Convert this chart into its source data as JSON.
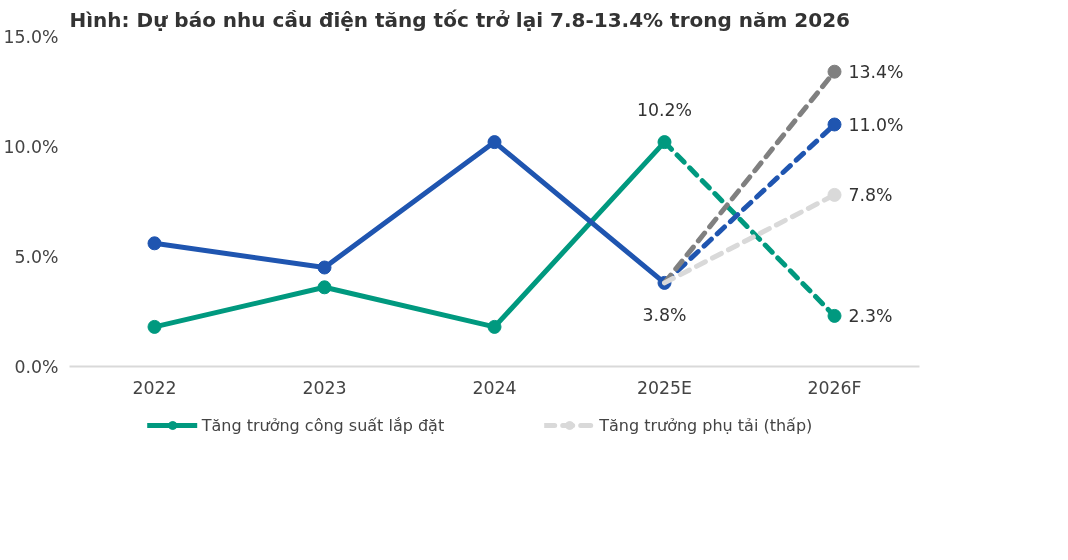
{
  "chart_data": {
    "type": "line",
    "title": "Hình: Dự báo nhu cầu điện tăng tốc trở lại 7.8-13.4% trong năm 2026",
    "categories": [
      "2022",
      "2023",
      "2024",
      "2025E",
      "2026F"
    ],
    "ylim": [
      0,
      15
    ],
    "yticks": [
      {
        "value": 0,
        "label": "0.0%"
      },
      {
        "value": 5,
        "label": "5.0%"
      },
      {
        "value": 10,
        "label": "10.0%"
      },
      {
        "value": 15,
        "label": "15.0%"
      }
    ],
    "grid": false,
    "legend": "bottom",
    "marker": "circle",
    "series": [
      {
        "name": "Tăng trưởng công suất lắp đặt",
        "color": "#00997f",
        "line_style": "solid",
        "values": [
          1.8,
          3.6,
          1.8,
          10.2,
          null
        ],
        "value_labels": [
          null,
          null,
          null,
          "10.2%",
          null
        ]
      },
      {
        "color": "#00997f",
        "line_style": "dashed",
        "values": [
          null,
          null,
          null,
          10.2,
          2.3
        ],
        "value_labels": [
          null,
          null,
          null,
          null,
          "2.3%"
        ]
      },
      {
        "color": "#1f55b0",
        "line_style": "solid",
        "values": [
          5.6,
          4.5,
          10.2,
          3.8,
          null
        ],
        "value_labels": [
          null,
          null,
          null,
          "3.8%",
          null
        ]
      },
      {
        "color": "#1f55b0",
        "line_style": "dashed",
        "values": [
          null,
          null,
          null,
          3.8,
          11.0
        ],
        "value_labels": [
          null,
          null,
          null,
          null,
          "11.0%"
        ]
      },
      {
        "color": "#808080",
        "line_style": "dashed",
        "values": [
          null,
          null,
          null,
          3.8,
          13.4
        ],
        "value_labels": [
          null,
          null,
          null,
          null,
          "13.4%"
        ]
      },
      {
        "name": "Tăng trưởng phụ tải (thấp)",
        "color": "#d9d9d9",
        "line_style": "dashed",
        "values": [
          null,
          null,
          null,
          3.8,
          7.8
        ],
        "value_labels": [
          null,
          null,
          null,
          null,
          "7.8%"
        ]
      }
    ]
  }
}
